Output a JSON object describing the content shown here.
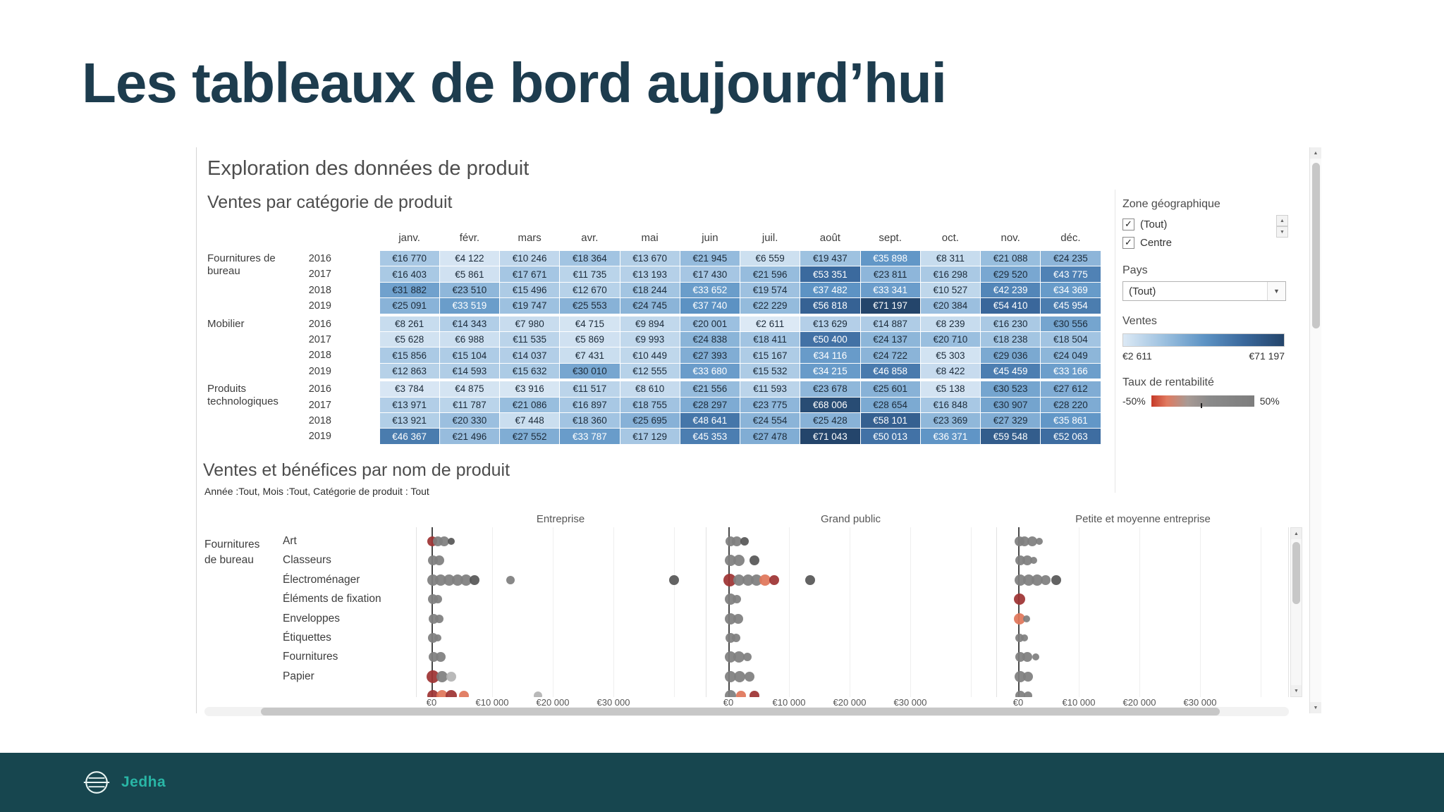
{
  "slide": {
    "title": "Les tableaux de bord aujourd’hui"
  },
  "footer": {
    "brand": "Jedha"
  },
  "dashboard": {
    "title": "Exploration des données de produit"
  },
  "icons": {
    "checkmark": "✓",
    "dropdown_arrow": "▼",
    "scroll_up": "▲",
    "scroll_down": "▼",
    "spinner_up": "▲",
    "spinner_down": "▼"
  },
  "filters": {
    "zone": {
      "label": "Zone géographique",
      "options": [
        {
          "label": "(Tout)",
          "checked": true
        },
        {
          "label": "Centre",
          "checked": true
        }
      ]
    },
    "pays": {
      "label": "Pays",
      "value": "(Tout)"
    },
    "ventes": {
      "label": "Ventes",
      "min_label": "€2 611",
      "max_label": "€71 197"
    },
    "taux": {
      "label": "Taux de rentabilité",
      "min_label": "-50%",
      "max_label": "50%",
      "gradient_stops": [
        "#c63a28 0%",
        "#e07a60 15%",
        "#a89a94 35%",
        "#8b8b8b 55%",
        "#7d7d7d 100%"
      ]
    }
  },
  "chart_data": [
    {
      "type": "heatmap",
      "title": "Ventes par catégorie de produit",
      "columns": [
        "janv.",
        "févr.",
        "mars",
        "avr.",
        "mai",
        "juin",
        "juil.",
        "août",
        "sept.",
        "oct.",
        "nov.",
        "déc."
      ],
      "years": [
        "2016",
        "2017",
        "2018",
        "2019"
      ],
      "row_groups": [
        {
          "category": "Fournitures de bureau",
          "values": [
            [
              16770,
              4122,
              10246,
              18364,
              13670,
              21945,
              6559,
              19437,
              35898,
              8311,
              21088,
              24235
            ],
            [
              16403,
              5861,
              17671,
              11735,
              13193,
              17430,
              21596,
              53351,
              23811,
              16298,
              29520,
              43775
            ],
            [
              31882,
              23510,
              15496,
              12670,
              18244,
              33652,
              19574,
              37482,
              33341,
              10527,
              42239,
              34369
            ],
            [
              25091,
              33519,
              19747,
              25553,
              24745,
              37740,
              22229,
              56818,
              71197,
              20384,
              54410,
              45954
            ]
          ]
        },
        {
          "category": "Mobilier",
          "values": [
            [
              8261,
              14343,
              7980,
              4715,
              9894,
              20001,
              2611,
              13629,
              14887,
              8239,
              16230,
              30556
            ],
            [
              5628,
              6988,
              11535,
              5869,
              9993,
              24838,
              18411,
              50400,
              24137,
              20710,
              18238,
              18504
            ],
            [
              15856,
              15104,
              14037,
              7431,
              10449,
              27393,
              15167,
              34116,
              24722,
              5303,
              29036,
              24049
            ],
            [
              12863,
              14593,
              15632,
              30010,
              12555,
              33680,
              15532,
              34215,
              46858,
              8422,
              45459,
              33166
            ]
          ]
        },
        {
          "category": "Produits technologiques",
          "values": [
            [
              3784,
              4875,
              3916,
              11517,
              8610,
              21556,
              11593,
              23678,
              25601,
              5138,
              30523,
              27612
            ],
            [
              13971,
              11787,
              21086,
              16897,
              18755,
              28297,
              23775,
              68006,
              28654,
              16848,
              30907,
              28220
            ],
            [
              13921,
              20330,
              7448,
              18360,
              25695,
              48641,
              24554,
              25428,
              58101,
              23369,
              27329,
              35861
            ],
            [
              46367,
              21496,
              27552,
              33787,
              17129,
              45353,
              27478,
              71043,
              50013,
              36371,
              59548,
              52063
            ]
          ]
        }
      ],
      "value_min": 2611,
      "value_max": 71197,
      "currency": "€",
      "color_stops": [
        "#dce9f5",
        "#9dc1e0",
        "#5e94c5",
        "#3a689c",
        "#24456b"
      ]
    },
    {
      "type": "scatter",
      "title": "Ventes et bénéfices par nom de produit",
      "subtitle": "Année :Tout, Mois :Tout, Catégorie de produit : Tout",
      "group_label": "Fournitures de bureau",
      "panels": [
        "Entreprise",
        "Grand public",
        "Petite et moyenne entreprise"
      ],
      "x_ticks": [
        {
          "label": "€0",
          "value": 0
        },
        {
          "label": "€10 000",
          "value": 10000
        },
        {
          "label": "€20 000",
          "value": 20000
        },
        {
          "label": "€30 000",
          "value": 30000
        }
      ],
      "dot_colors": {
        "gray": "#7f7f7f",
        "darkgray": "#575757",
        "lightgray": "#b4b4b4",
        "red": "#9e3434",
        "salmon": "#e0765a"
      },
      "rows": [
        {
          "label": "Art",
          "dots": [
            [
              [
                100,
                7,
                "red"
              ],
              [
                1000,
                7,
                "gray"
              ],
              [
                2100,
                7,
                "gray"
              ],
              [
                3200,
                5,
                "darkgray"
              ]
            ],
            [
              [
                300,
                7,
                "gray"
              ],
              [
                1400,
                7,
                "gray"
              ],
              [
                2700,
                6,
                "darkgray"
              ]
            ],
            [
              [
                200,
                7,
                "gray"
              ],
              [
                1100,
                7,
                "gray"
              ],
              [
                2300,
                7,
                "gray"
              ],
              [
                3500,
                5,
                "gray"
              ]
            ]
          ]
        },
        {
          "label": "Classeurs",
          "dots": [
            [
              [
                200,
                7,
                "gray"
              ],
              [
                1300,
                7,
                "gray"
              ]
            ],
            [
              [
                300,
                8,
                "gray"
              ],
              [
                1700,
                8,
                "gray"
              ],
              [
                4300,
                7,
                "darkgray"
              ]
            ],
            [
              [
                300,
                7,
                "gray"
              ],
              [
                1500,
                7,
                "gray"
              ],
              [
                2600,
                5,
                "gray"
              ]
            ]
          ]
        },
        {
          "label": "Électroménager",
          "dots": [
            [
              [
                200,
                8,
                "gray"
              ],
              [
                1500,
                8,
                "gray"
              ],
              [
                2900,
                8,
                "gray"
              ],
              [
                4300,
                8,
                "gray"
              ],
              [
                5700,
                8,
                "gray"
              ],
              [
                7100,
                7,
                "darkgray"
              ],
              [
                13000,
                6,
                "gray"
              ],
              [
                40000,
                7,
                "darkgray"
              ]
            ],
            [
              [
                200,
                9,
                "red"
              ],
              [
                1800,
                8,
                "gray"
              ],
              [
                3200,
                8,
                "gray"
              ],
              [
                4600,
                8,
                "gray"
              ],
              [
                6000,
                8,
                "salmon"
              ],
              [
                7500,
                7,
                "red"
              ],
              [
                13500,
                7,
                "darkgray"
              ]
            ],
            [
              [
                300,
                8,
                "gray"
              ],
              [
                1700,
                8,
                "gray"
              ],
              [
                3100,
                8,
                "gray"
              ],
              [
                4500,
                7,
                "gray"
              ],
              [
                6300,
                7,
                "darkgray"
              ]
            ]
          ]
        },
        {
          "label": "Éléments de fixation",
          "dots": [
            [
              [
                200,
                7,
                "gray"
              ],
              [
                1100,
                6,
                "gray"
              ]
            ],
            [
              [
                300,
                8,
                "gray"
              ],
              [
                1400,
                6,
                "gray"
              ]
            ],
            [
              [
                200,
                8,
                "red"
              ]
            ]
          ]
        },
        {
          "label": "Enveloppes",
          "dots": [
            [
              [
                300,
                7,
                "gray"
              ],
              [
                1300,
                6,
                "gray"
              ]
            ],
            [
              [
                300,
                8,
                "gray"
              ],
              [
                1600,
                7,
                "gray"
              ]
            ],
            [
              [
                200,
                8,
                "salmon"
              ],
              [
                1400,
                5,
                "gray"
              ]
            ]
          ]
        },
        {
          "label": "Étiquettes",
          "dots": [
            [
              [
                200,
                7,
                "gray"
              ],
              [
                1000,
                5,
                "gray"
              ]
            ],
            [
              [
                300,
                7,
                "gray"
              ],
              [
                1300,
                6,
                "gray"
              ]
            ],
            [
              [
                200,
                6,
                "gray"
              ],
              [
                1000,
                5,
                "gray"
              ]
            ]
          ]
        },
        {
          "label": "Fournitures",
          "dots": [
            [
              [
                300,
                7,
                "gray"
              ],
              [
                1500,
                7,
                "gray"
              ]
            ],
            [
              [
                300,
                8,
                "gray"
              ],
              [
                1700,
                8,
                "gray"
              ],
              [
                3100,
                6,
                "gray"
              ]
            ],
            [
              [
                300,
                7,
                "gray"
              ],
              [
                1500,
                7,
                "gray"
              ],
              [
                2900,
                5,
                "gray"
              ]
            ]
          ]
        },
        {
          "label": "Papier",
          "dots": [
            [
              [
                200,
                9,
                "red"
              ],
              [
                1700,
                8,
                "gray"
              ],
              [
                3300,
                7,
                "lightgray"
              ]
            ],
            [
              [
                300,
                8,
                "gray"
              ],
              [
                1900,
                8,
                "gray"
              ],
              [
                3500,
                7,
                "gray"
              ]
            ],
            [
              [
                300,
                8,
                "gray"
              ],
              [
                1600,
                7,
                "gray"
              ]
            ]
          ]
        },
        {
          "label": "",
          "clipped": true,
          "dots": [
            [
              [
                200,
                8,
                "red"
              ],
              [
                1700,
                8,
                "salmon"
              ],
              [
                3300,
                8,
                "red"
              ],
              [
                5300,
                7,
                "salmon"
              ],
              [
                17500,
                6,
                "lightgray"
              ]
            ],
            [
              [
                300,
                8,
                "gray"
              ],
              [
                2100,
                7,
                "salmon"
              ],
              [
                4300,
                7,
                "red"
              ]
            ],
            [
              [
                300,
                7,
                "gray"
              ],
              [
                1600,
                6,
                "gray"
              ]
            ]
          ]
        }
      ]
    }
  ]
}
